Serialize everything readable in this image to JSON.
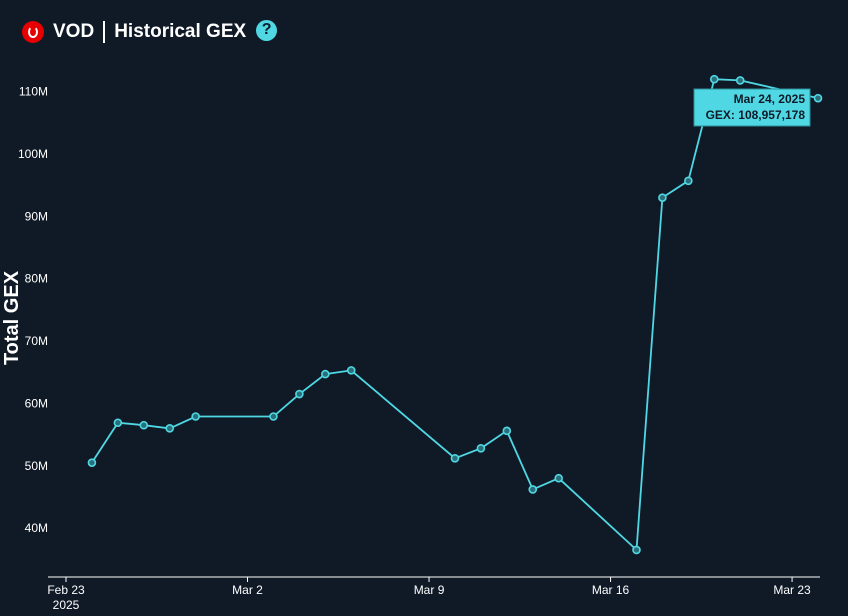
{
  "header": {
    "ticker": "VOD",
    "title": "Historical GEX",
    "help_glyph": "?"
  },
  "icons": {
    "logo": "vodafone-logo-icon",
    "help": "help-icon"
  },
  "colors": {
    "background": "#101a27",
    "line": "#4fd8e4",
    "text": "#ffffff",
    "tooltip_bg": "#4fd8e4",
    "tooltip_text": "#101a27"
  },
  "tooltip": {
    "date": "Mar 24, 2025",
    "value": "GEX: 108,957,178"
  },
  "chart_data": {
    "type": "line",
    "title": "",
    "xlabel": "",
    "ylabel": "Total GEX",
    "ylim": [
      32000000,
      117000000
    ],
    "y_ticks": [
      40000000,
      50000000,
      60000000,
      70000000,
      80000000,
      90000000,
      100000000,
      110000000
    ],
    "y_tick_labels": [
      "40M",
      "50M",
      "60M",
      "70M",
      "80M",
      "90M",
      "100M",
      "110M"
    ],
    "xlim": [
      "2025-02-23",
      "2025-03-24"
    ],
    "x_ticks": [
      "2025-02-23",
      "2025-03-02",
      "2025-03-09",
      "2025-03-16",
      "2025-03-23"
    ],
    "x_tick_labels": [
      "Feb 23\n2025",
      "Mar 2",
      "Mar 9",
      "Mar 16",
      "Mar 23"
    ],
    "grid": false,
    "series": [
      {
        "name": "",
        "x": [
          "2025-02-24",
          "2025-02-25",
          "2025-02-26",
          "2025-02-27",
          "2025-02-28",
          "2025-03-03",
          "2025-03-04",
          "2025-03-05",
          "2025-03-06",
          "2025-03-10",
          "2025-03-11",
          "2025-03-12",
          "2025-03-13",
          "2025-03-14",
          "2025-03-17",
          "2025-03-18",
          "2025-03-19",
          "2025-03-20",
          "2025-03-21",
          "2025-03-24"
        ],
        "y": [
          50500000,
          56900000,
          56500000,
          56000000,
          57900000,
          57900000,
          61500000,
          64700000,
          65300000,
          51200000,
          52800000,
          55600000,
          46200000,
          48000000,
          36500000,
          93000000,
          95700000,
          112000000,
          111800000,
          108957178
        ]
      }
    ]
  }
}
